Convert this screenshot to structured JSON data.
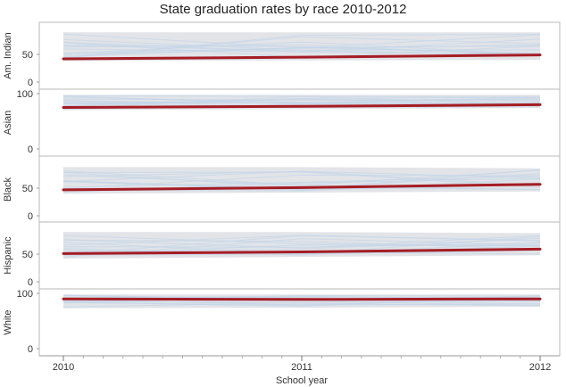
{
  "chart_data": {
    "type": "line",
    "title": "State graduation rates by race 2010-2012",
    "xlabel": "School year",
    "x": [
      "2010",
      "2011",
      "2012"
    ],
    "panels": [
      {
        "label": "Am. Indian",
        "yticks": [
          0,
          50
        ],
        "ylim": [
          0,
          100
        ],
        "average": [
          42,
          45,
          49
        ],
        "band": {
          "min": [
            38,
            39,
            40
          ],
          "max": [
            90,
            90,
            90
          ]
        }
      },
      {
        "label": "Asian",
        "yticks": [
          0,
          100
        ],
        "ylim": [
          0,
          100
        ],
        "average": [
          75,
          77,
          80
        ],
        "band": {
          "min": [
            70,
            72,
            74
          ],
          "max": [
            98,
            98,
            98
          ]
        }
      },
      {
        "label": "Black",
        "yticks": [
          0,
          50
        ],
        "ylim": [
          0,
          100
        ],
        "average": [
          47,
          51,
          57
        ],
        "band": {
          "min": [
            40,
            42,
            44
          ],
          "max": [
            88,
            88,
            86
          ]
        }
      },
      {
        "label": "Hispanic",
        "yticks": [
          0,
          50
        ],
        "ylim": [
          0,
          100
        ],
        "average": [
          51,
          54,
          59
        ],
        "band": {
          "min": [
            42,
            45,
            48
          ],
          "max": [
            90,
            90,
            88
          ]
        }
      },
      {
        "label": "White",
        "yticks": [
          0,
          100
        ],
        "ylim": [
          0,
          100
        ],
        "average": [
          90,
          89,
          90
        ],
        "band": {
          "min": [
            73,
            74,
            76
          ],
          "max": [
            98,
            98,
            98
          ]
        }
      }
    ],
    "grid": false,
    "legend": "none",
    "colors": {
      "average": "#a51c24",
      "band": "#e2e4e8",
      "state_lines": "#c5d5e8"
    }
  }
}
